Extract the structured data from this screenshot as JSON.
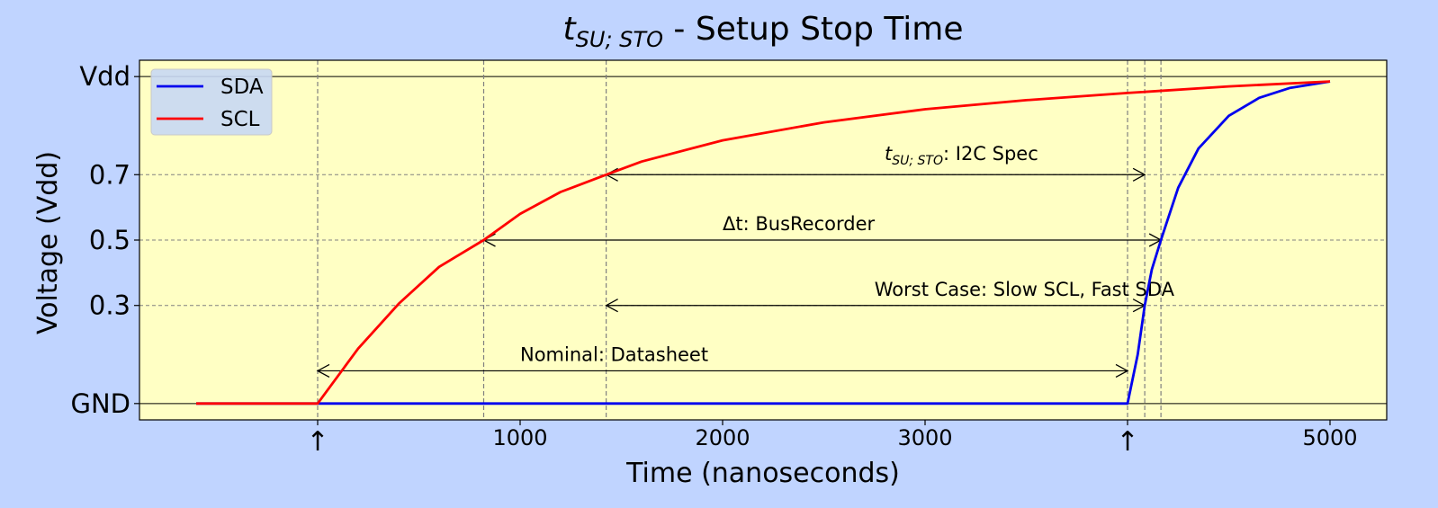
{
  "chart_data": {
    "type": "line",
    "title": {
      "main": "t",
      "sub": "SU; STO",
      "rest": " - Setup Stop Time"
    },
    "xlabel": "Time (nanoseconds)",
    "ylabel": "Voltage (Vdd)",
    "xlim": [
      -880,
      5280
    ],
    "ylim": [
      -0.05,
      1.05
    ],
    "x_ticks": [
      {
        "value": 1000,
        "label": "1000"
      },
      {
        "value": 2000,
        "label": "2000"
      },
      {
        "value": 3000,
        "label": "3000"
      },
      {
        "value": 5000,
        "label": "5000"
      }
    ],
    "x_markers": [
      {
        "value": 0,
        "label": "↑"
      },
      {
        "value": 4000,
        "label": "↑"
      }
    ],
    "y_ticks": [
      {
        "value": 0,
        "label": "GND"
      },
      {
        "value": 0.3,
        "label": "0.3"
      },
      {
        "value": 0.5,
        "label": "0.5"
      },
      {
        "value": 0.7,
        "label": "0.7"
      },
      {
        "value": 1.0,
        "label": "Vdd"
      }
    ],
    "vlines": [
      0,
      820,
      1425,
      4000,
      4085,
      4165
    ],
    "hlines_dashed": [
      0.3,
      0.5,
      0.7
    ],
    "hlines_solid": [
      0,
      1.0
    ],
    "series": [
      {
        "name": "SDA",
        "color": "#0000ee",
        "points": [
          [
            -600,
            0
          ],
          [
            4000,
            0
          ],
          [
            4050,
            0.15
          ],
          [
            4085,
            0.3
          ],
          [
            4120,
            0.41
          ],
          [
            4165,
            0.5
          ],
          [
            4250,
            0.66
          ],
          [
            4350,
            0.78
          ],
          [
            4500,
            0.88
          ],
          [
            4650,
            0.935
          ],
          [
            4800,
            0.965
          ],
          [
            5000,
            0.985
          ]
        ]
      },
      {
        "name": "SCL",
        "color": "#ff0000",
        "points": [
          [
            -600,
            0
          ],
          [
            0,
            0
          ],
          [
            200,
            0.168
          ],
          [
            400,
            0.305
          ],
          [
            600,
            0.418
          ],
          [
            820,
            0.5
          ],
          [
            1000,
            0.58
          ],
          [
            1200,
            0.647
          ],
          [
            1425,
            0.7
          ],
          [
            1600,
            0.74
          ],
          [
            2000,
            0.805
          ],
          [
            2500,
            0.86
          ],
          [
            3000,
            0.9
          ],
          [
            3500,
            0.928
          ],
          [
            4000,
            0.95
          ],
          [
            4500,
            0.97
          ],
          [
            5000,
            0.985
          ]
        ]
      }
    ],
    "annotations": [
      {
        "kind": "spec",
        "y": 0.7,
        "x1": 1425,
        "x2": 4085,
        "text_y": 0.745,
        "text_x": 2800,
        "main": "t",
        "sub": "SU; STO",
        "rest": ": I2C Spec"
      },
      {
        "kind": "plain",
        "y": 0.5,
        "x1": 820,
        "x2": 4165,
        "text_y": 0.53,
        "text_x": 2000,
        "text": "Δt: BusRecorder"
      },
      {
        "kind": "plain",
        "y": 0.3,
        "x1": 1425,
        "x2": 4085,
        "text_y": 0.33,
        "text_x": 2750,
        "text": "Worst Case: Slow SCL, Fast SDA"
      },
      {
        "kind": "plain",
        "y": 0.1,
        "x1": 0,
        "x2": 4000,
        "text_y": 0.13,
        "text_x": 1000,
        "text": "Nominal: Datasheet"
      }
    ],
    "legend": {
      "position": "top-left",
      "entries": [
        "SDA",
        "SCL"
      ]
    },
    "grid": false
  }
}
